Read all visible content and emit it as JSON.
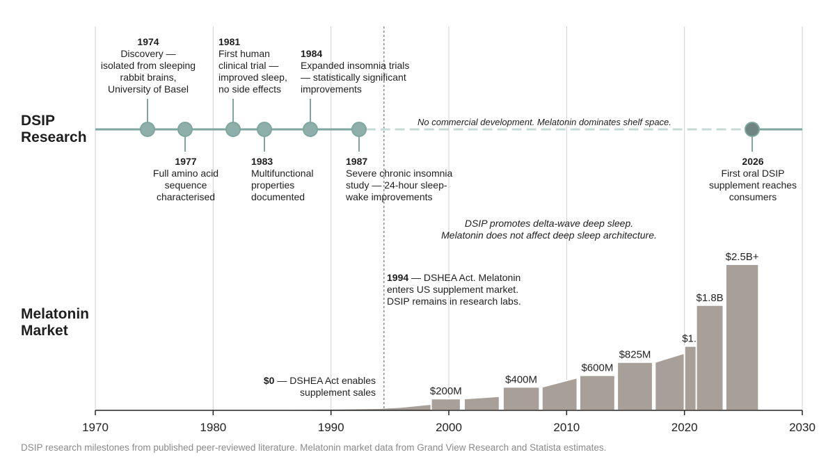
{
  "rows": {
    "research": [
      "DSIP",
      "Research"
    ],
    "market": [
      "Melatonin",
      "Market"
    ]
  },
  "research_milestones": [
    {
      "year": 1974,
      "label": "1974",
      "desc": "Discovery —\nisolated from sleeping\nrabbit brains,\nUniversity of Basel",
      "side": "above"
    },
    {
      "year": 1977,
      "label": "1977",
      "desc": "Full amino acid\nsequence\ncharacterised",
      "side": "below"
    },
    {
      "year": 1981,
      "label": "1981",
      "desc": "First human\nclinical trial —\nimproved sleep,\nno side effects",
      "side": "above"
    },
    {
      "year": 1983,
      "label": "1983",
      "desc": "Multifunctional\nproperties\ndocumented",
      "side": "below"
    },
    {
      "year": 1984,
      "label": "1984",
      "desc": "Expanded insomnia trials\n— statistically significant\nimprovements",
      "side": "above"
    },
    {
      "year": 1987,
      "label": "1987",
      "desc": "Severe chronic insomnia\nstudy — 24-hour sleep-\nwake improvements",
      "side": "below"
    },
    {
      "year": 2026,
      "label": "2026",
      "desc": "First oral DSIP\nsupplement reaches\nconsumers",
      "side": "below"
    }
  ],
  "gap_note": "No commercial development. Melatonin dominates shelf space.",
  "comparison_note": [
    "DSIP promotes delta-wave deep sleep.",
    "Melatonin does not affect deep sleep architecture."
  ],
  "dshea_note": {
    "year": "1994",
    "text": " — DSHEA Act. Melatonin",
    "line2": "enters US supplement market.",
    "line3": "DSIP remains in research labs."
  },
  "zero_note": {
    "value": "$0",
    "text": " — DSHEA Act enables",
    "line2": "supplement sales"
  },
  "footer": "DSIP research milestones from published peer-reviewed literature. Melatonin market data from Grand View Research and Statista estimates.",
  "colors": {
    "timeline": "#7fa59f",
    "node": "#8fb0aa",
    "node_future": "#6e8581",
    "dashed": "#c6dad6",
    "bar": "#a8a098",
    "grid": "#cfcfcf",
    "axis": "#222222"
  },
  "chart_data": {
    "type": "area",
    "x_axis": {
      "min": 1970,
      "max": 2030,
      "ticks": [
        "1970",
        "1980",
        "1990",
        "2000",
        "2010",
        "2020",
        "2030"
      ]
    },
    "y_unit": "USD millions",
    "area": [
      {
        "x": 1980,
        "y": 0
      },
      {
        "x": 1985,
        "y": 4
      },
      {
        "x": 1990,
        "y": 12
      },
      {
        "x": 1994,
        "y": 24
      },
      {
        "x": 1996,
        "y": 45
      },
      {
        "x": 1998.5,
        "y": 95
      }
    ],
    "bars": [
      {
        "x0": 1998.5,
        "x1": 2001.0,
        "value": 200,
        "label": "$200M"
      },
      {
        "x0": 2001.3,
        "x1": 2004.3,
        "value": 200,
        "top_end": 240
      },
      {
        "x0": 2004.6,
        "x1": 2007.7,
        "value": 400,
        "label": "$400M"
      },
      {
        "x0": 2007.9,
        "x1": 2010.9,
        "value": 400,
        "top_end": 560
      },
      {
        "x0": 2011.1,
        "x1": 2014.1,
        "value": 600,
        "label": "$600M"
      },
      {
        "x0": 2014.3,
        "x1": 2017.3,
        "value": 825,
        "label": "$825M"
      },
      {
        "x0": 2017.5,
        "x1": 2020.0,
        "value": 825,
        "top_end": 980
      },
      {
        "x0": 2020.0,
        "x1": 2021.9,
        "value": 1100,
        "label": "$1.1B"
      },
      {
        "x0": 2021.0,
        "x1": 2023.3,
        "value": 1800,
        "label": "$1.8B"
      },
      {
        "x0": 2023.5,
        "x1": 2026.3,
        "value": 2500,
        "label": "$2.5B+"
      }
    ],
    "dshea_year": 1994.5
  }
}
